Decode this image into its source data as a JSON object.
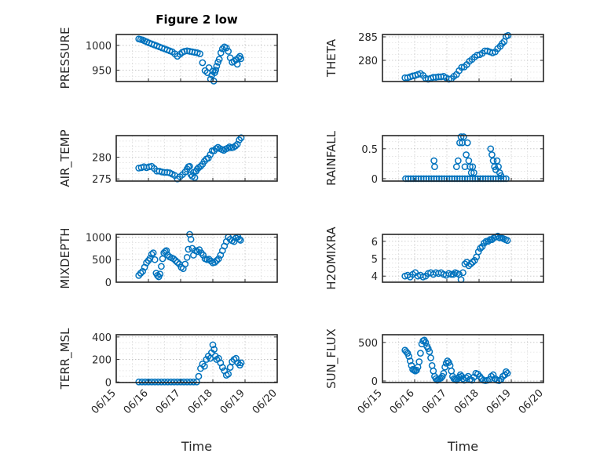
{
  "figure": {
    "title": "Figure 2 low",
    "marker_color": "#0072BD"
  },
  "chart_data": [
    {
      "type": "scatter",
      "ylabel": "PRESSURE",
      "xlim": [
        0,
        5
      ],
      "ylim": [
        927,
        1022
      ],
      "yticks": [
        950,
        1000
      ],
      "ytick_labels": [
        "950",
        "1000"
      ],
      "xticks": [],
      "xtick_labels": [],
      "xlabel": "",
      "grid": true,
      "x": [
        0.7,
        0.76,
        0.82,
        0.88,
        0.95,
        1.02,
        1.1,
        1.18,
        1.26,
        1.34,
        1.42,
        1.5,
        1.58,
        1.66,
        1.74,
        1.82,
        1.9,
        1.98,
        2.05,
        2.12,
        2.2,
        2.28,
        2.36,
        2.44,
        2.52,
        2.6,
        2.68,
        2.76,
        2.83,
        2.88,
        2.93,
        2.97,
        3.0,
        3.03,
        3.06,
        3.09,
        3.12,
        3.16,
        3.2,
        3.25,
        3.3,
        3.36,
        3.42,
        3.48,
        3.54,
        3.6,
        3.66,
        3.72,
        3.76,
        3.8,
        3.84,
        3.87
      ],
      "y": [
        1013,
        1012,
        1011,
        1009,
        1007,
        1005,
        1003,
        1001,
        999,
        997,
        995,
        993,
        991,
        989,
        987,
        983,
        978,
        982,
        986,
        988,
        989,
        988,
        987,
        986,
        985,
        983,
        965,
        949,
        945,
        955,
        932,
        940,
        948,
        928,
        945,
        950,
        958,
        966,
        972,
        985,
        993,
        997,
        995,
        988,
        975,
        966,
        968,
        971,
        962,
        975,
        978,
        973
      ]
    },
    {
      "type": "scatter",
      "ylabel": "THETA",
      "xlim": [
        0,
        5
      ],
      "ylim": [
        275.5,
        285.5
      ],
      "yticks": [
        280,
        285
      ],
      "ytick_labels": [
        "280",
        "285"
      ],
      "xticks": [],
      "xtick_labels": [],
      "xlabel": "",
      "grid": true,
      "x": [
        0.7,
        0.78,
        0.86,
        0.94,
        1.02,
        1.1,
        1.18,
        1.26,
        1.34,
        1.42,
        1.5,
        1.58,
        1.66,
        1.74,
        1.82,
        1.9,
        1.98,
        2.06,
        2.14,
        2.22,
        2.3,
        2.38,
        2.46,
        2.54,
        2.62,
        2.7,
        2.78,
        2.86,
        2.94,
        3.02,
        3.1,
        3.18,
        3.26,
        3.34,
        3.42,
        3.5,
        3.58,
        3.66,
        3.72,
        3.78,
        3.84,
        3.9
      ],
      "y": [
        276.3,
        276.3,
        276.5,
        276.7,
        276.8,
        277.0,
        277.2,
        276.8,
        276.2,
        276.0,
        276.2,
        276.4,
        276.4,
        276.5,
        276.5,
        276.6,
        276.3,
        276.0,
        276.1,
        276.6,
        277.0,
        277.8,
        278.5,
        278.6,
        279.1,
        279.8,
        280.2,
        280.7,
        281.1,
        281.2,
        281.5,
        282.0,
        282.0,
        281.8,
        281.6,
        281.8,
        282.5,
        283.0,
        283.6,
        284.0,
        285.1,
        285.3
      ]
    },
    {
      "type": "scatter",
      "ylabel": "AIR_TEMP",
      "xlim": [
        0,
        5
      ],
      "ylim": [
        274.5,
        285
      ],
      "yticks": [
        275,
        280
      ],
      "ytick_labels": [
        "275",
        "280"
      ],
      "xticks": [],
      "xtick_labels": [],
      "xlabel": "",
      "grid": true,
      "x": [
        0.7,
        0.78,
        0.86,
        0.94,
        1.02,
        1.1,
        1.18,
        1.26,
        1.34,
        1.42,
        1.5,
        1.58,
        1.66,
        1.74,
        1.82,
        1.9,
        1.98,
        2.06,
        2.14,
        2.2,
        2.24,
        2.28,
        2.32,
        2.36,
        2.4,
        2.44,
        2.48,
        2.52,
        2.56,
        2.62,
        2.68,
        2.74,
        2.8,
        2.86,
        2.92,
        2.98,
        3.04,
        3.1,
        3.16,
        3.22,
        3.28,
        3.34,
        3.4,
        3.46,
        3.52,
        3.58,
        3.64,
        3.7,
        3.76,
        3.82,
        3.88
      ],
      "y": [
        277.5,
        277.6,
        277.8,
        277.6,
        277.8,
        277.9,
        277.4,
        276.8,
        276.8,
        276.6,
        276.5,
        276.5,
        276.4,
        276.1,
        275.8,
        275.0,
        275.5,
        276.0,
        276.6,
        277.3,
        277.8,
        277.9,
        276.0,
        275.6,
        276.5,
        275.3,
        276.8,
        277.3,
        277.6,
        277.9,
        278.4,
        279.1,
        279.6,
        279.8,
        280.6,
        281.5,
        281.5,
        282.0,
        282.3,
        282.0,
        281.8,
        281.6,
        281.9,
        282.1,
        282.4,
        282.2,
        282.3,
        282.6,
        283.0,
        284.0,
        284.5
      ]
    },
    {
      "type": "scatter",
      "ylabel": "RAINFALL",
      "xlim": [
        0,
        5
      ],
      "ylim": [
        -0.04,
        0.72
      ],
      "yticks": [
        0,
        0.5
      ],
      "ytick_labels": [
        "0",
        "0.5"
      ],
      "xticks": [],
      "xtick_labels": [],
      "xlabel": "",
      "grid": true,
      "x": [
        0.72,
        0.8,
        0.88,
        0.96,
        1.04,
        1.12,
        1.2,
        1.28,
        1.36,
        1.44,
        1.52,
        1.6,
        1.68,
        1.76,
        1.84,
        1.92,
        2.0,
        2.08,
        2.16,
        2.24,
        2.32,
        2.4,
        2.48,
        2.56,
        2.64,
        2.72,
        2.8,
        2.88,
        2.96,
        3.04,
        3.12,
        3.2,
        3.28,
        3.36,
        3.44,
        3.52,
        3.6,
        3.68,
        3.76,
        3.84,
        1.6,
        1.62,
        2.3,
        2.35,
        2.4,
        2.44,
        2.48,
        2.52,
        2.56,
        2.6,
        2.64,
        2.68,
        2.72,
        2.76,
        2.8,
        2.84,
        3.36,
        3.4,
        3.44,
        3.48,
        3.52,
        3.56,
        3.6,
        3.64,
        3.68
      ],
      "y": [
        0,
        0,
        0,
        0,
        0,
        0,
        0,
        0,
        0,
        0,
        0,
        0,
        0,
        0,
        0,
        0,
        0,
        0,
        0,
        0,
        0,
        0,
        0,
        0,
        0,
        0,
        0,
        0,
        0,
        0,
        0,
        0,
        0,
        0,
        0,
        0,
        0,
        0,
        0,
        0,
        0.3,
        0.2,
        0.2,
        0.3,
        0.6,
        0.7,
        0.6,
        0.7,
        0.2,
        0.4,
        0.6,
        0.3,
        0.2,
        0.1,
        0.2,
        0.1,
        0.5,
        0.4,
        0.3,
        0.2,
        0.15,
        0.3,
        0.2,
        0.1,
        0.05
      ]
    },
    {
      "type": "scatter",
      "ylabel": "MIXDEPTH",
      "xlim": [
        0,
        5
      ],
      "ylim": [
        0,
        1060
      ],
      "yticks": [
        0,
        500,
        1000
      ],
      "ytick_labels": [
        "0",
        "500",
        "1000"
      ],
      "xticks": [],
      "xtick_labels": [],
      "xlabel": "",
      "grid": true,
      "x": [
        0.7,
        0.76,
        0.82,
        0.88,
        0.94,
        1.0,
        1.05,
        1.1,
        1.15,
        1.2,
        1.24,
        1.28,
        1.32,
        1.36,
        1.4,
        1.44,
        1.48,
        1.52,
        1.56,
        1.6,
        1.66,
        1.72,
        1.78,
        1.84,
        1.9,
        1.96,
        2.02,
        2.08,
        2.14,
        2.2,
        2.24,
        2.28,
        2.32,
        2.36,
        2.4,
        2.46,
        2.52,
        2.58,
        2.64,
        2.7,
        2.76,
        2.82,
        2.88,
        2.94,
        3.0,
        3.06,
        3.12,
        3.18,
        3.24,
        3.3,
        3.36,
        3.42,
        3.48,
        3.54,
        3.6,
        3.66,
        3.72,
        3.78,
        3.82,
        3.86
      ],
      "y": [
        150,
        200,
        240,
        330,
        430,
        480,
        530,
        620,
        650,
        500,
        200,
        150,
        120,
        180,
        350,
        520,
        650,
        680,
        700,
        600,
        560,
        540,
        520,
        480,
        440,
        400,
        330,
        300,
        400,
        550,
        730,
        1060,
        950,
        750,
        600,
        700,
        680,
        720,
        650,
        600,
        520,
        500,
        510,
        470,
        430,
        440,
        480,
        520,
        600,
        700,
        800,
        900,
        1000,
        950,
        920,
        900,
        980,
        1000,
        950,
        930
      ]
    },
    {
      "type": "scatter",
      "ylabel": "H2OMIXRA",
      "xlim": [
        0,
        5
      ],
      "ylim": [
        3.65,
        6.4
      ],
      "yticks": [
        4,
        5,
        6
      ],
      "ytick_labels": [
        "4",
        "5",
        "6"
      ],
      "xticks": [],
      "xtick_labels": [],
      "xlabel": "",
      "grid": true,
      "x": [
        0.7,
        0.78,
        0.86,
        0.94,
        1.02,
        1.1,
        1.18,
        1.26,
        1.34,
        1.42,
        1.5,
        1.58,
        1.66,
        1.74,
        1.82,
        1.9,
        1.98,
        2.06,
        2.14,
        2.2,
        2.26,
        2.32,
        2.38,
        2.44,
        2.5,
        2.56,
        2.62,
        2.68,
        2.74,
        2.8,
        2.86,
        2.92,
        2.98,
        3.04,
        3.1,
        3.16,
        3.22,
        3.28,
        3.34,
        3.4,
        3.46,
        3.52,
        3.58,
        3.64,
        3.7,
        3.76,
        3.82,
        3.88
      ],
      "y": [
        4.0,
        4.05,
        3.95,
        4.1,
        4.2,
        4.0,
        4.05,
        3.95,
        4.0,
        4.15,
        4.2,
        4.1,
        4.2,
        4.15,
        4.2,
        4.1,
        4.05,
        4.15,
        4.1,
        4.1,
        4.2,
        4.15,
        4.1,
        3.8,
        4.2,
        4.7,
        4.8,
        4.6,
        4.7,
        4.8,
        4.9,
        5.1,
        5.4,
        5.6,
        5.7,
        5.9,
        6.0,
        6.0,
        6.1,
        6.1,
        6.2,
        6.25,
        6.3,
        6.2,
        6.2,
        6.15,
        6.1,
        6.05
      ]
    },
    {
      "type": "scatter",
      "ylabel": "TERR_MSL",
      "xlim": [
        0,
        5
      ],
      "ylim": [
        -5,
        420
      ],
      "yticks": [
        0,
        200,
        400
      ],
      "ytick_labels": [
        "0",
        "200",
        "400"
      ],
      "xticks": [
        0,
        1,
        2,
        3,
        4,
        5
      ],
      "xtick_labels": [
        "06/15",
        "06/16",
        "06/17",
        "06/18",
        "06/19",
        "06/20"
      ],
      "xlabel": "Time",
      "grid": true,
      "x": [
        0.7,
        0.8,
        0.9,
        1.0,
        1.1,
        1.2,
        1.3,
        1.4,
        1.5,
        1.6,
        1.7,
        1.8,
        1.9,
        2.0,
        2.1,
        2.2,
        2.3,
        2.4,
        2.5,
        2.56,
        2.62,
        2.68,
        2.74,
        2.8,
        2.86,
        2.92,
        2.96,
        3.0,
        3.04,
        3.08,
        3.12,
        3.18,
        3.24,
        3.3,
        3.36,
        3.42,
        3.48,
        3.54,
        3.6,
        3.66,
        3.72,
        3.78,
        3.84,
        3.88
      ],
      "y": [
        0,
        0,
        0,
        0,
        0,
        0,
        0,
        0,
        0,
        0,
        0,
        0,
        0,
        0,
        0,
        0,
        0,
        0,
        0,
        50,
        120,
        160,
        140,
        200,
        230,
        210,
        260,
        330,
        290,
        230,
        200,
        210,
        170,
        130,
        100,
        60,
        70,
        130,
        180,
        200,
        210,
        170,
        150,
        170
      ]
    },
    {
      "type": "scatter",
      "ylabel": "SUN_FLUX",
      "xlim": [
        0,
        5
      ],
      "ylim": [
        -20,
        600
      ],
      "yticks": [
        0,
        500
      ],
      "ytick_labels": [
        "0",
        "500"
      ],
      "xticks": [
        0,
        1,
        2,
        3,
        4,
        5
      ],
      "xtick_labels": [
        "06/15",
        "06/16",
        "06/17",
        "06/18",
        "06/19",
        "06/20"
      ],
      "xlabel": "Time",
      "grid": true,
      "x": [
        0.7,
        0.74,
        0.78,
        0.82,
        0.86,
        0.9,
        0.94,
        0.98,
        1.02,
        1.06,
        1.1,
        1.14,
        1.18,
        1.22,
        1.26,
        1.3,
        1.34,
        1.38,
        1.42,
        1.46,
        1.5,
        1.54,
        1.58,
        1.62,
        1.66,
        1.7,
        1.74,
        1.78,
        1.82,
        1.86,
        1.9,
        1.94,
        1.98,
        2.02,
        2.06,
        2.1,
        2.14,
        2.18,
        2.22,
        2.26,
        2.3,
        2.34,
        2.38,
        2.42,
        2.46,
        2.5,
        2.54,
        2.6,
        2.66,
        2.72,
        2.78,
        2.84,
        2.9,
        2.96,
        3.02,
        3.08,
        3.14,
        3.2,
        3.26,
        3.32,
        3.38,
        3.44,
        3.5,
        3.56,
        3.62,
        3.68,
        3.74,
        3.8,
        3.84,
        3.88
      ],
      "y": [
        400,
        380,
        360,
        320,
        260,
        200,
        150,
        140,
        130,
        140,
        180,
        250,
        360,
        480,
        520,
        530,
        500,
        450,
        420,
        380,
        300,
        200,
        130,
        60,
        30,
        10,
        20,
        30,
        40,
        60,
        100,
        180,
        230,
        260,
        240,
        200,
        130,
        60,
        30,
        20,
        10,
        30,
        50,
        80,
        60,
        30,
        10,
        40,
        60,
        20,
        10,
        50,
        100,
        90,
        60,
        30,
        10,
        5,
        10,
        20,
        60,
        80,
        30,
        10,
        5,
        20,
        60,
        80,
        120,
        100
      ]
    }
  ]
}
